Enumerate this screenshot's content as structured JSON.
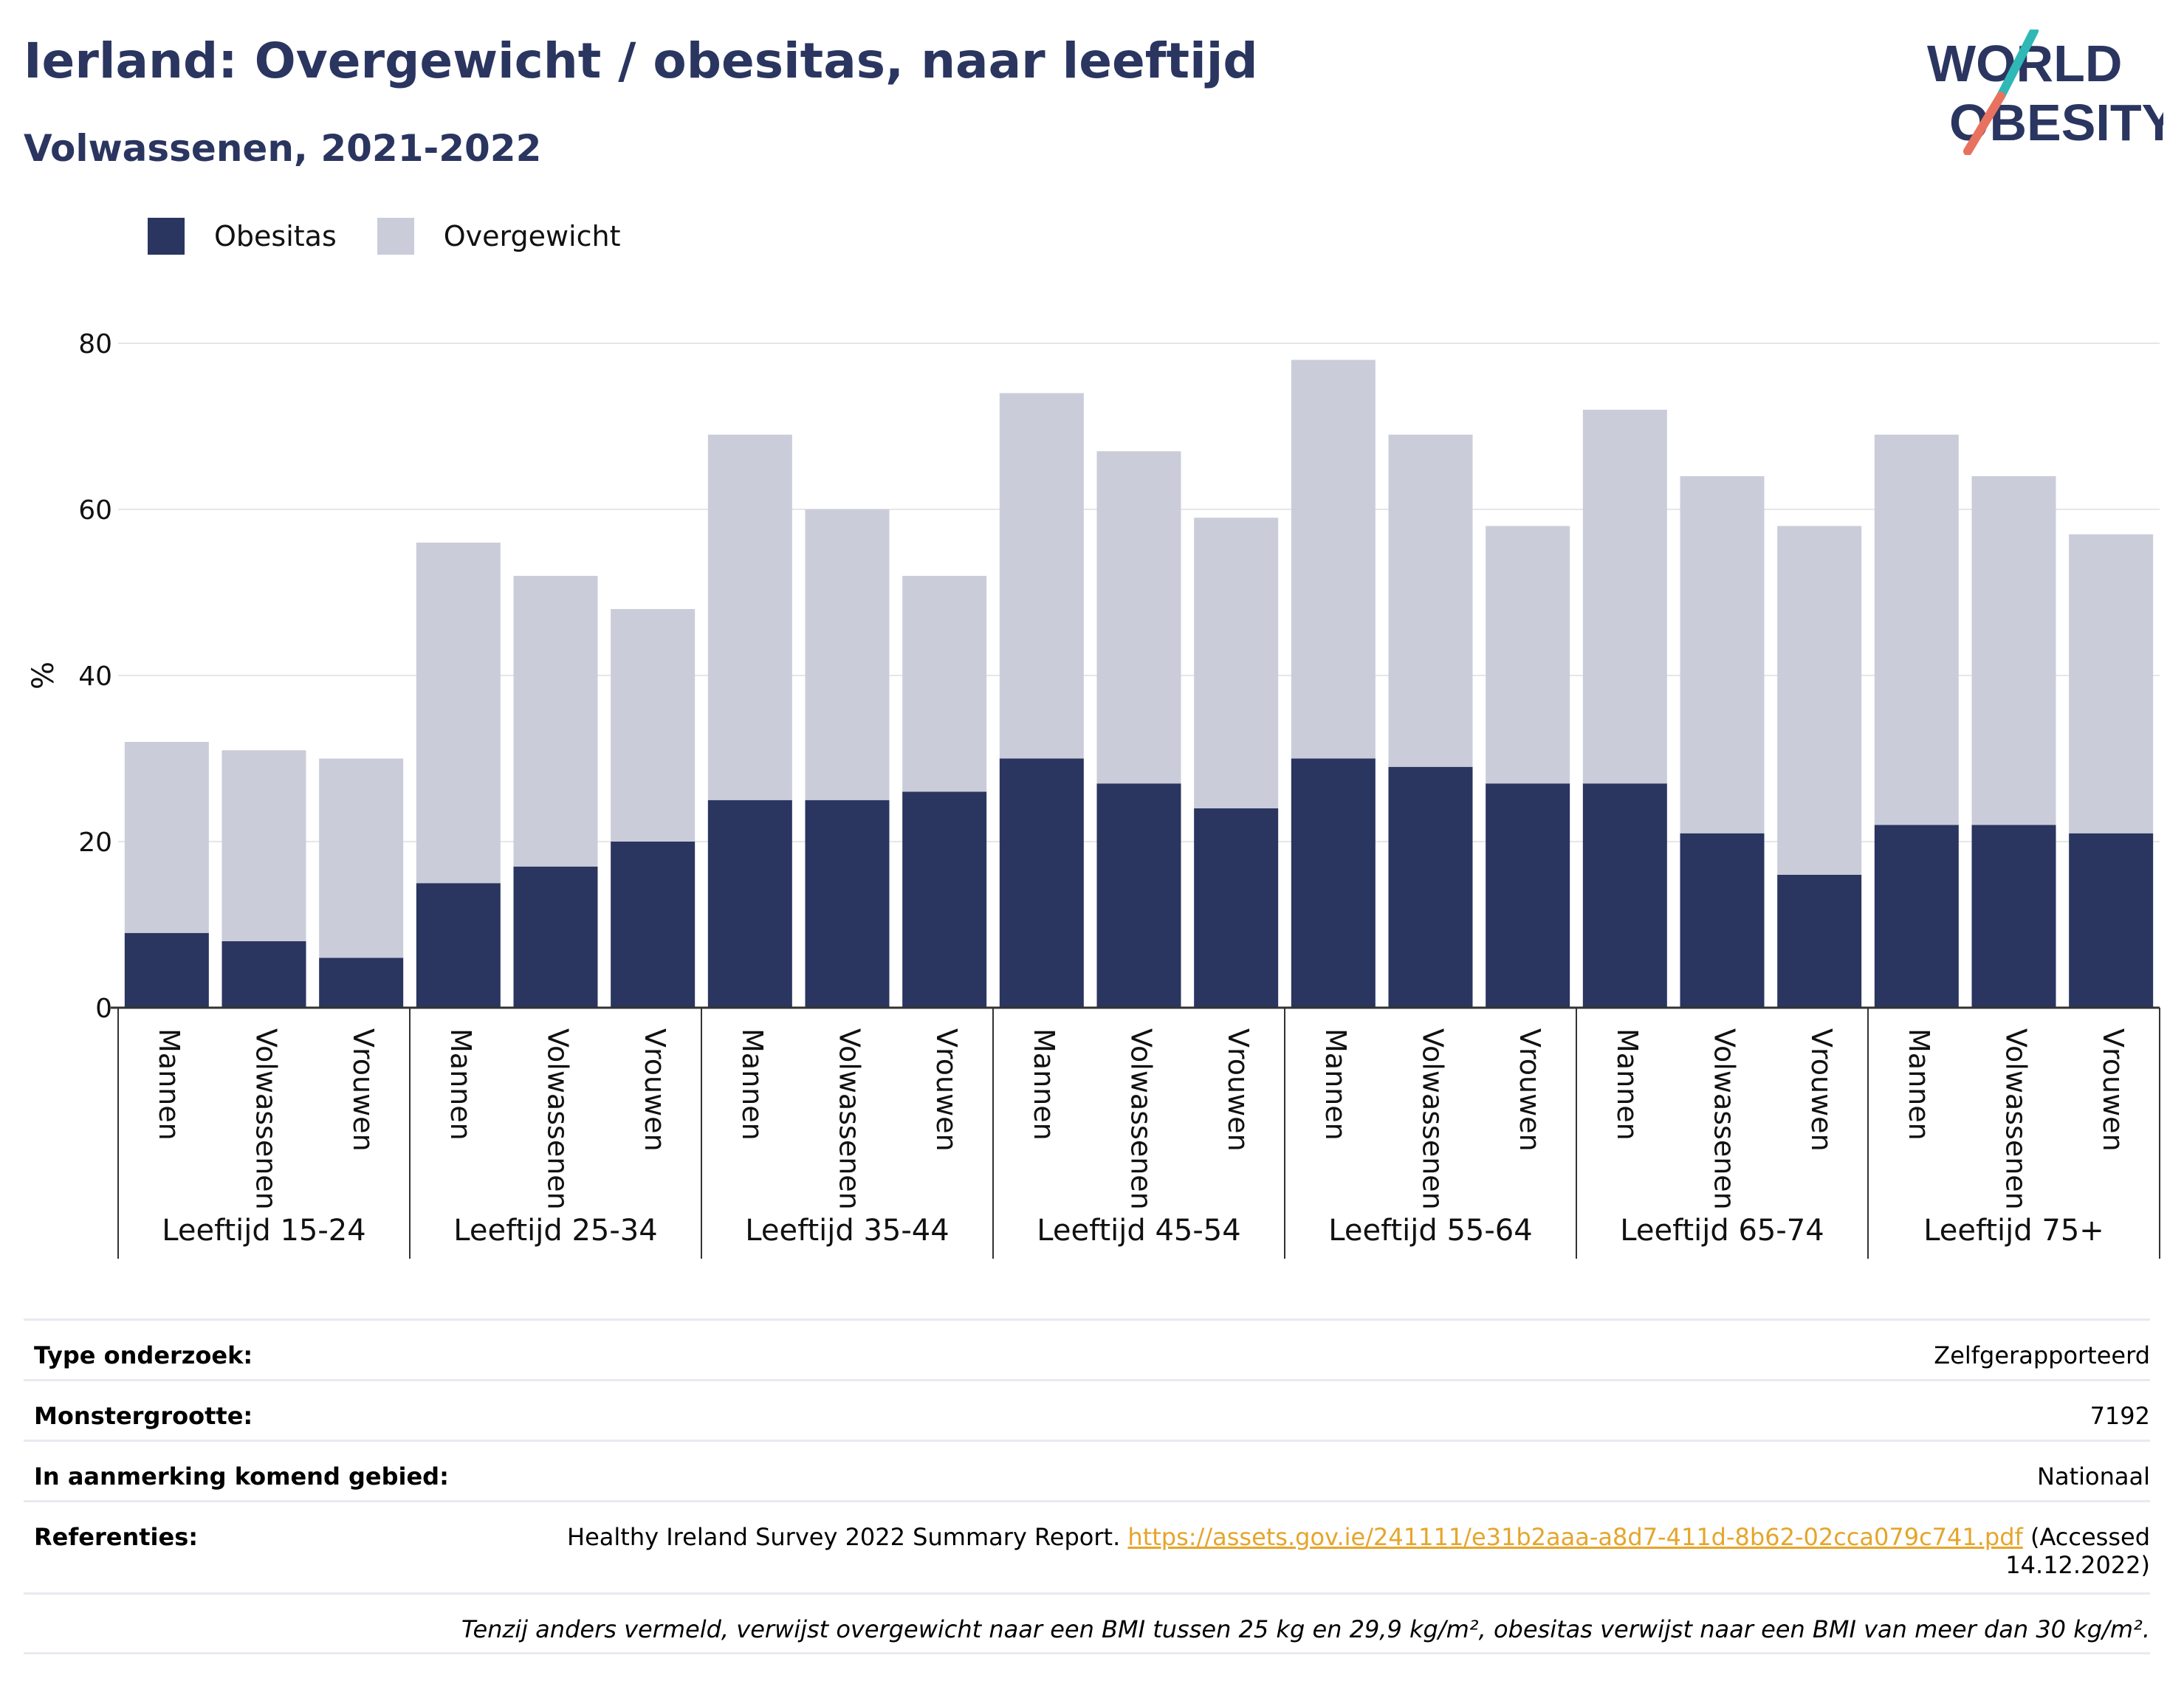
{
  "header": {
    "title": "Ierland: Overgewicht / obesitas, naar leeftijd",
    "subtitle": "Volwassenen, 2021-2022"
  },
  "logo": {
    "line1": "WORLD",
    "line2": "OBESITY"
  },
  "legend": [
    {
      "label": "Obesitas",
      "color": "#2a3560"
    },
    {
      "label": "Overgewicht",
      "color": "#cacdd9"
    }
  ],
  "chart_data": {
    "type": "bar",
    "stacked": true,
    "ylabel": "%",
    "ylim": [
      0,
      80
    ],
    "yticks": [
      0,
      20,
      40,
      60,
      80
    ],
    "grid": true,
    "legend_position": "top-left",
    "groups": [
      "Leeftijd 15-24",
      "Leeftijd 25-34",
      "Leeftijd 35-44",
      "Leeftijd 45-54",
      "Leeftijd 55-64",
      "Leeftijd 65-74",
      "Leeftijd 75+"
    ],
    "subcategories": [
      "Mannen",
      "Volwassenen",
      "Vrouwen"
    ],
    "series": [
      {
        "name": "Obesitas",
        "color": "#2a3560",
        "values": [
          9,
          8,
          6,
          15,
          17,
          20,
          25,
          25,
          26,
          30,
          27,
          24,
          30,
          29,
          27,
          27,
          21,
          16,
          22,
          22,
          21
        ]
      },
      {
        "name": "Overgewicht",
        "color": "#cacdd9",
        "values": [
          23,
          23,
          24,
          41,
          35,
          28,
          44,
          35,
          26,
          44,
          40,
          35,
          48,
          40,
          31,
          45,
          43,
          42,
          47,
          42,
          36
        ]
      }
    ]
  },
  "info": {
    "rows": [
      {
        "key": "Type onderzoek:",
        "value": "Zelfgerapporteerd"
      },
      {
        "key": "Monstergrootte:",
        "value": "7192"
      },
      {
        "key": "In aanmerking komend gebied:",
        "value": "Nationaal"
      }
    ],
    "references": {
      "key": "Referenties:",
      "text": "Healthy Ireland Survey 2022 Summary Report.",
      "link": "https://assets.gov.ie/241111/e31b2aaa-a8d7-411d-8b62-02cca079c741.pdf",
      "accessed": "(Accessed 14.12.2022)"
    },
    "note": "Tenzij anders vermeld, verwijst overgewicht naar een BMI tussen 25 kg en 29,9 kg/m², obesitas verwijst naar een BMI van meer dan 30 kg/m²."
  }
}
